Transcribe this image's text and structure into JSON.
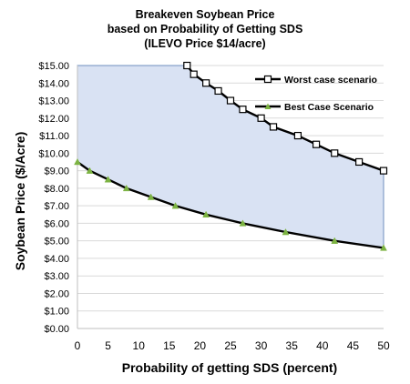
{
  "chart_data": {
    "type": "line",
    "title_lines": [
      "Breakeven Soybean Price",
      "based on Probability of Getting SDS",
      "(ILEVO Price $14/acre)"
    ],
    "xlabel": "Probability of getting SDS (percent)",
    "ylabel": "Soybean Price ($/Acre)",
    "xlim": [
      0,
      50
    ],
    "ylim": [
      0,
      15
    ],
    "x_ticks": [
      "0",
      "5",
      "10",
      "15",
      "20",
      "25",
      "30",
      "35",
      "40",
      "45",
      "50"
    ],
    "y_ticks": [
      "$0.00",
      "$1.00",
      "$2.00",
      "$3.00",
      "$4.00",
      "$5.00",
      "$6.00",
      "$7.00",
      "$8.00",
      "$9.00",
      "$10.00",
      "$11.00",
      "$12.00",
      "$13.00",
      "$14.00",
      "$15.00"
    ],
    "grid": "horizontal",
    "legend_position": "upper-right",
    "shaded_region_color": "#d9e2f3",
    "series": [
      {
        "name": "Worst case scenario",
        "marker": "square",
        "color": "#000000",
        "points": [
          [
            17.9,
            15.0
          ],
          [
            19.0,
            14.5
          ],
          [
            21.0,
            14.0
          ],
          [
            23.0,
            13.55
          ],
          [
            25.0,
            13.0
          ],
          [
            27.0,
            12.5
          ],
          [
            30.0,
            12.0
          ],
          [
            32.0,
            11.5
          ],
          [
            36.0,
            11.0
          ],
          [
            39.0,
            10.5
          ],
          [
            42.0,
            10.0
          ],
          [
            46.0,
            9.5
          ],
          [
            50.0,
            9.0
          ]
        ]
      },
      {
        "name": "Best Case Scenario",
        "marker": "triangle",
        "color": "#7cb342",
        "points": [
          [
            0,
            9.5
          ],
          [
            2,
            9.0
          ],
          [
            5,
            8.5
          ],
          [
            8,
            8.0
          ],
          [
            12,
            7.5
          ],
          [
            16,
            7.0
          ],
          [
            21,
            6.5
          ],
          [
            27,
            6.0
          ],
          [
            34,
            5.5
          ],
          [
            42,
            5.0
          ],
          [
            50,
            4.6
          ]
        ]
      }
    ]
  }
}
